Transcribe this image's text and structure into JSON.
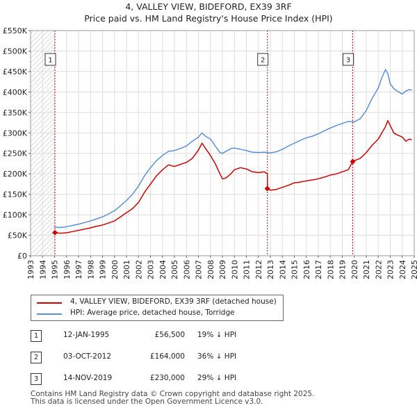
{
  "header": {
    "title_line1": "4, VALLEY VIEW, BIDEFORD, EX39 3RF",
    "title_line2": "Price paid vs. HM Land Registry's House Price Index (HPI)"
  },
  "chart_data": {
    "type": "line",
    "title": "4, VALLEY VIEW, BIDEFORD, EX39 3RF",
    "subtitle": "Price paid vs. HM Land Registry's House Price Index (HPI)",
    "xlabel": "",
    "ylabel": "",
    "xlim": [
      1993,
      2025
    ],
    "ylim": [
      0,
      550000
    ],
    "x_ticks": [
      "1993",
      "1994",
      "1995",
      "1996",
      "1997",
      "1998",
      "1999",
      "2000",
      "2001",
      "2002",
      "2003",
      "2004",
      "2005",
      "2006",
      "2007",
      "2008",
      "2009",
      "2010",
      "2011",
      "2012",
      "2013",
      "2014",
      "2015",
      "2016",
      "2017",
      "2018",
      "2019",
      "2020",
      "2021",
      "2022",
      "2023",
      "2024",
      "2025"
    ],
    "y_ticks": [
      0,
      50000,
      100000,
      150000,
      200000,
      250000,
      300000,
      350000,
      400000,
      450000,
      500000,
      550000
    ],
    "y_tick_labels": [
      "£0",
      "£50K",
      "£100K",
      "£150K",
      "£200K",
      "£250K",
      "£300K",
      "£350K",
      "£400K",
      "£450K",
      "£500K",
      "£550K"
    ],
    "hatched_region": [
      1993,
      1995.03
    ],
    "grid": true,
    "colors": {
      "property": "#cc0000",
      "hpi": "#5b8fd4",
      "hatch": "#bbbbbb"
    },
    "series": [
      {
        "name": "4, VALLEY VIEW, BIDEFORD, EX39 3RF (detached house)",
        "color": "#cc0000",
        "x": [
          1995.03,
          1995.5,
          1996,
          1996.5,
          1997,
          1997.5,
          1998,
          1998.5,
          1999,
          1999.5,
          2000,
          2000.5,
          2001,
          2001.5,
          2002,
          2002.5,
          2003,
          2003.5,
          2004,
          2004.5,
          2005,
          2005.5,
          2006,
          2006.5,
          2007,
          2007.3,
          2007.6,
          2008,
          2008.4,
          2008.8,
          2009,
          2009.3,
          2009.7,
          2010,
          2010.5,
          2011,
          2011.5,
          2012,
          2012.5,
          2012.75,
          2012.76,
          2013,
          2013.5,
          2014,
          2014.5,
          2015,
          2015.5,
          2016,
          2016.5,
          2017,
          2017.5,
          2018,
          2018.5,
          2019,
          2019.5,
          2019.87,
          2020,
          2020.5,
          2021,
          2021.5,
          2022,
          2022.3,
          2022.6,
          2022.8,
          2023,
          2023.3,
          2023.6,
          2024,
          2024.3,
          2024.6,
          2024.8
        ],
        "y": [
          56500,
          55000,
          56000,
          59000,
          62000,
          65000,
          68000,
          72000,
          75000,
          80000,
          85000,
          95000,
          105000,
          115000,
          130000,
          155000,
          175000,
          195000,
          210000,
          222000,
          218000,
          223000,
          228000,
          238000,
          258000,
          275000,
          262000,
          245000,
          225000,
          200000,
          188000,
          190000,
          200000,
          210000,
          215000,
          212000,
          205000,
          203000,
          205000,
          200000,
          164000,
          160000,
          162000,
          167000,
          172000,
          178000,
          180000,
          183000,
          185000,
          188000,
          192000,
          197000,
          200000,
          205000,
          210000,
          230000,
          232000,
          238000,
          252000,
          270000,
          285000,
          300000,
          315000,
          330000,
          318000,
          300000,
          295000,
          290000,
          280000,
          285000,
          283000
        ]
      },
      {
        "name": "HPI: Average price, detached house, Torridge",
        "color": "#5b8fd4",
        "x": [
          1995,
          1995.5,
          1996,
          1996.5,
          1997,
          1997.5,
          1998,
          1998.5,
          1999,
          1999.5,
          2000,
          2000.5,
          2001,
          2001.5,
          2002,
          2002.5,
          2003,
          2003.5,
          2004,
          2004.5,
          2005,
          2005.5,
          2006,
          2006.5,
          2007,
          2007.3,
          2007.6,
          2008,
          2008.4,
          2008.8,
          2009,
          2009.3,
          2009.7,
          2010,
          2010.5,
          2011,
          2011.5,
          2012,
          2012.5,
          2013,
          2013.5,
          2014,
          2014.5,
          2015,
          2015.5,
          2016,
          2016.5,
          2017,
          2017.5,
          2018,
          2018.5,
          2019,
          2019.5,
          2020,
          2020.5,
          2021,
          2021.5,
          2022,
          2022.3,
          2022.6,
          2022.8,
          2023,
          2023.3,
          2023.6,
          2024,
          2024.3,
          2024.6,
          2024.8
        ],
        "y": [
          70000,
          69000,
          71000,
          74000,
          77000,
          81000,
          85000,
          90000,
          95000,
          102000,
          110000,
          122000,
          135000,
          150000,
          170000,
          195000,
          215000,
          232000,
          245000,
          255000,
          257000,
          262000,
          268000,
          280000,
          290000,
          300000,
          292000,
          285000,
          268000,
          252000,
          250000,
          255000,
          262000,
          263000,
          260000,
          257000,
          253000,
          252000,
          253000,
          251000,
          254000,
          260000,
          268000,
          275000,
          282000,
          288000,
          292000,
          298000,
          305000,
          312000,
          318000,
          323000,
          328000,
          327000,
          335000,
          355000,
          385000,
          410000,
          435000,
          455000,
          445000,
          420000,
          408000,
          402000,
          395000,
          402000,
          406000,
          404000
        ]
      }
    ],
    "transactions": [
      {
        "id": "1",
        "date": "12-JAN-1995",
        "price": "£56,500",
        "hpi_diff": "19% ↓ HPI",
        "x": 1995.03,
        "y": 56500
      },
      {
        "id": "2",
        "date": "03-OCT-2012",
        "price": "£164,000",
        "hpi_diff": "36% ↓ HPI",
        "x": 2012.75,
        "y": 164000
      },
      {
        "id": "3",
        "date": "14-NOV-2019",
        "price": "£230,000",
        "hpi_diff": "29% ↓ HPI",
        "x": 2019.87,
        "y": 230000
      }
    ],
    "legend_position": "bottom"
  },
  "legend": {
    "property_label": "4, VALLEY VIEW, BIDEFORD, EX39 3RF (detached house)",
    "hpi_label": "HPI: Average price, detached house, Torridge"
  },
  "footer": {
    "line1": "Contains HM Land Registry data © Crown copyright and database right 2025.",
    "line2": "This data is licensed under the Open Government Licence v3.0."
  }
}
